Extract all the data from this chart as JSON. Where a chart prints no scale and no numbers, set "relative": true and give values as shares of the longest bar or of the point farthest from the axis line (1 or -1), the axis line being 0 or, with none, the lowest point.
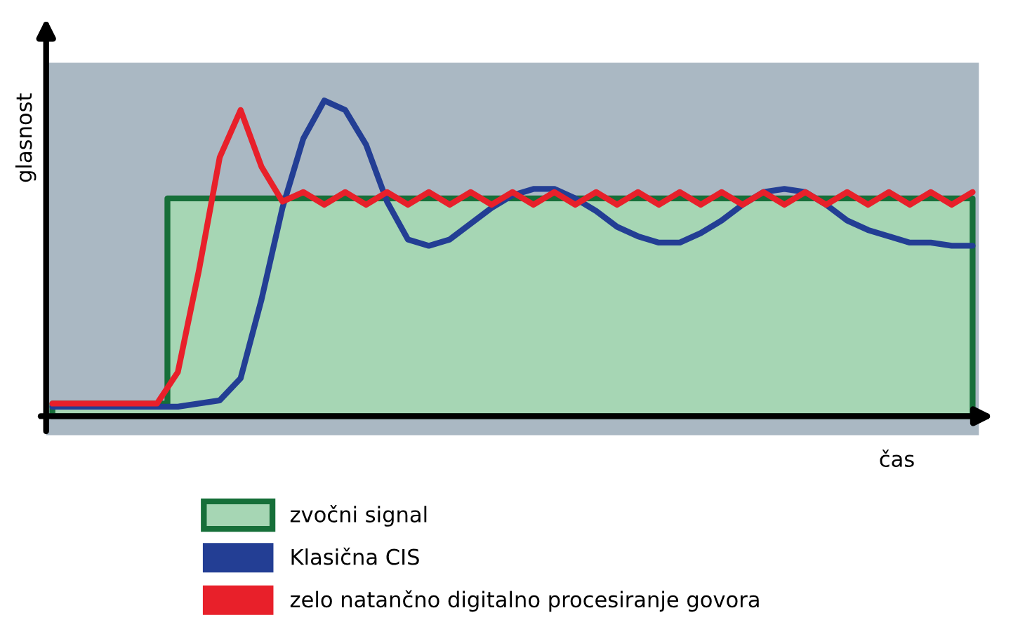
{
  "chart_data": {
    "type": "line",
    "relative": true,
    "xlabel": "čas",
    "ylabel": "glasnost",
    "legend": "bottom",
    "grid": false,
    "marker": "none",
    "line_style": "solid",
    "categories": [
      null,
      null,
      null,
      null,
      null,
      null,
      null,
      null,
      null,
      null,
      null,
      null,
      null,
      null,
      null,
      null,
      null,
      null,
      null,
      null,
      null,
      null,
      null,
      null,
      null,
      null,
      null,
      null,
      null,
      null,
      null,
      null,
      null,
      null,
      null,
      null,
      null,
      null,
      null,
      null,
      null,
      null,
      null,
      null,
      null
    ],
    "series": [
      {
        "name": "zvočni signal",
        "type": "area",
        "color": "#a6d6b4",
        "values": [
          0.04,
          0.04,
          0.04,
          0.04,
          0.04,
          0.04,
          0.69,
          0.69,
          0.69,
          0.69,
          0.69,
          0.69,
          0.69,
          0.69,
          0.69,
          0.69,
          0.69,
          0.69,
          0.69,
          0.69,
          0.69,
          0.69,
          0.69,
          0.69,
          0.69,
          0.69,
          0.69,
          0.69,
          0.69,
          0.69,
          0.69,
          0.69,
          0.69,
          0.69,
          0.69,
          0.69,
          0.69,
          0.69,
          0.69,
          0.69,
          0.69,
          0.69,
          0.69,
          0.69,
          0.69
        ]
      },
      {
        "name": "Klasična CIS",
        "color": "#233e94",
        "values": [
          0.03,
          0.03,
          0.03,
          0.03,
          0.03,
          0.03,
          0.03,
          0.04,
          0.05,
          0.12,
          0.37,
          0.66,
          0.88,
          1.0,
          0.97,
          0.86,
          0.68,
          0.56,
          0.54,
          0.56,
          0.61,
          0.66,
          0.7,
          0.72,
          0.72,
          0.69,
          0.65,
          0.6,
          0.57,
          0.55,
          0.55,
          0.58,
          0.62,
          0.67,
          0.71,
          0.72,
          0.71,
          0.67,
          0.62,
          0.59,
          0.57,
          0.55,
          0.55,
          0.54,
          0.54
        ]
      },
      {
        "name": "zelo natančno digitalno procesiranje govora",
        "color": "#e8202a",
        "values": [
          0.04,
          0.04,
          0.04,
          0.04,
          0.04,
          0.04,
          0.14,
          0.46,
          0.82,
          0.97,
          0.79,
          0.68,
          0.71,
          0.67,
          0.71,
          0.67,
          0.71,
          0.67,
          0.71,
          0.67,
          0.71,
          0.67,
          0.71,
          0.67,
          0.71,
          0.67,
          0.71,
          0.67,
          0.71,
          0.67,
          0.71,
          0.67,
          0.71,
          0.67,
          0.71,
          0.67,
          0.71,
          0.67,
          0.71,
          0.67,
          0.71,
          0.67,
          0.71,
          0.67,
          0.71
        ]
      }
    ]
  }
}
